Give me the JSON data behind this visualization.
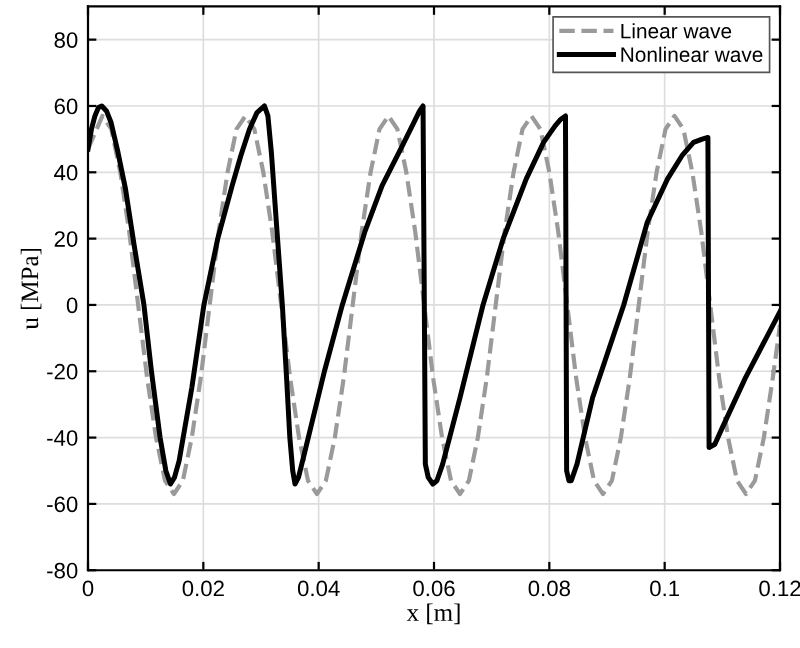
{
  "chart_data": {
    "type": "line",
    "xlabel": "x [m]",
    "ylabel": "u [MPa]",
    "xlim": [
      0,
      0.12
    ],
    "ylim": [
      -80,
      90
    ],
    "xticks": [
      0,
      0.02,
      0.04,
      0.06,
      0.08,
      0.1,
      0.12
    ],
    "yticks": [
      -80,
      -60,
      -40,
      -20,
      0,
      20,
      40,
      60,
      80
    ],
    "grid": true,
    "legend": "top right",
    "marker": "none",
    "series": [
      {
        "name": "Linear wave",
        "color": "#9a9a9a",
        "line_style": "dashed",
        "x": [
          0,
          0.0025,
          0.00405,
          0.0056,
          0.00715,
          0.0087,
          0.01025,
          0.0118,
          0.01335,
          0.0149,
          0.01645,
          0.018,
          0.01955,
          0.0211,
          0.02265,
          0.0242,
          0.02575,
          0.0273,
          0.02885,
          0.0304,
          0.03195,
          0.0335,
          0.03505,
          0.0366,
          0.03815,
          0.0397,
          0.04125,
          0.0428,
          0.04435,
          0.0459,
          0.04745,
          0.049,
          0.05055,
          0.0521,
          0.05365,
          0.0552,
          0.05675,
          0.0583,
          0.05985,
          0.0614,
          0.06295,
          0.0645,
          0.06605,
          0.0676,
          0.06915,
          0.0707,
          0.07225,
          0.0738,
          0.07535,
          0.0769,
          0.07845,
          0.08,
          0.08155,
          0.0831,
          0.08465,
          0.0862,
          0.08775,
          0.0893,
          0.09085,
          0.0924,
          0.09395,
          0.0955,
          0.09705,
          0.0986,
          0.10015,
          0.1017,
          0.10325,
          0.1048,
          0.10635,
          0.1079,
          0.10945,
          0.111,
          0.11255,
          0.1141,
          0.11565,
          0.1172,
          0.11875,
          0.12
        ],
        "values": [
          47,
          57,
          53,
          40,
          22,
          0,
          -22,
          -40,
          -53,
          -57,
          -53,
          -40,
          -22,
          0,
          22,
          40,
          53,
          57,
          53,
          40,
          22,
          0,
          -22,
          -40,
          -53,
          -57,
          -53,
          -40,
          -22,
          0,
          22,
          40,
          53,
          57,
          53,
          40,
          22,
          0,
          -22,
          -40,
          -53,
          -57,
          -53,
          -40,
          -22,
          0,
          22,
          40,
          53,
          57,
          53,
          40,
          22,
          0,
          -22,
          -40,
          -53,
          -57,
          -53,
          -40,
          -22,
          0,
          22,
          40,
          53,
          57,
          53,
          40,
          22,
          0,
          -22,
          -40,
          -53,
          -57,
          -53,
          -40,
          -22,
          -6
        ]
      },
      {
        "name": "Nonlinear wave",
        "color": "#000000",
        "line_style": "solid",
        "x": [
          0,
          0.0006,
          0.0012,
          0.0018,
          0.0024,
          0.0032,
          0.004,
          0.0052,
          0.0065,
          0.008,
          0.0097,
          0.011,
          0.0125,
          0.0135,
          0.0143,
          0.015,
          0.0158,
          0.0168,
          0.018,
          0.0201,
          0.0225,
          0.025,
          0.0265,
          0.028,
          0.0293,
          0.0306,
          0.0312,
          0.0318,
          0.0327,
          0.0337,
          0.0345,
          0.035,
          0.0355,
          0.0359,
          0.0365,
          0.0375,
          0.041,
          0.0441,
          0.048,
          0.051,
          0.0545,
          0.0565,
          0.0575,
          0.0581,
          0.0585,
          0.059,
          0.0598,
          0.0605,
          0.0615,
          0.0645,
          0.0685,
          0.072,
          0.076,
          0.079,
          0.081,
          0.082,
          0.0828,
          0.083,
          0.0834,
          0.0838,
          0.0848,
          0.0875,
          0.0929,
          0.097,
          0.1005,
          0.103,
          0.105,
          0.1065,
          0.1075,
          0.1077,
          0.1087,
          0.11,
          0.114,
          0.12
        ],
        "values": [
          47,
          53,
          57,
          59.5,
          60,
          58.5,
          55,
          46,
          35,
          18,
          0,
          -20,
          -40,
          -50,
          -54,
          -52,
          -47,
          -37,
          -25,
          0,
          20,
          36,
          45,
          53,
          58,
          60,
          57,
          46,
          24,
          0,
          -24,
          -40,
          -50,
          -54,
          -52,
          -45,
          -20,
          0,
          22,
          36,
          48,
          55,
          58.5,
          60,
          -48,
          -52,
          -54,
          -53,
          -48,
          -28,
          0,
          20,
          38,
          49,
          54,
          56,
          57,
          -50,
          -53,
          -53,
          -48,
          -28,
          0,
          25,
          38,
          45,
          49,
          50,
          50.5,
          -43,
          -42,
          -37,
          -22,
          -2
        ]
      }
    ]
  }
}
